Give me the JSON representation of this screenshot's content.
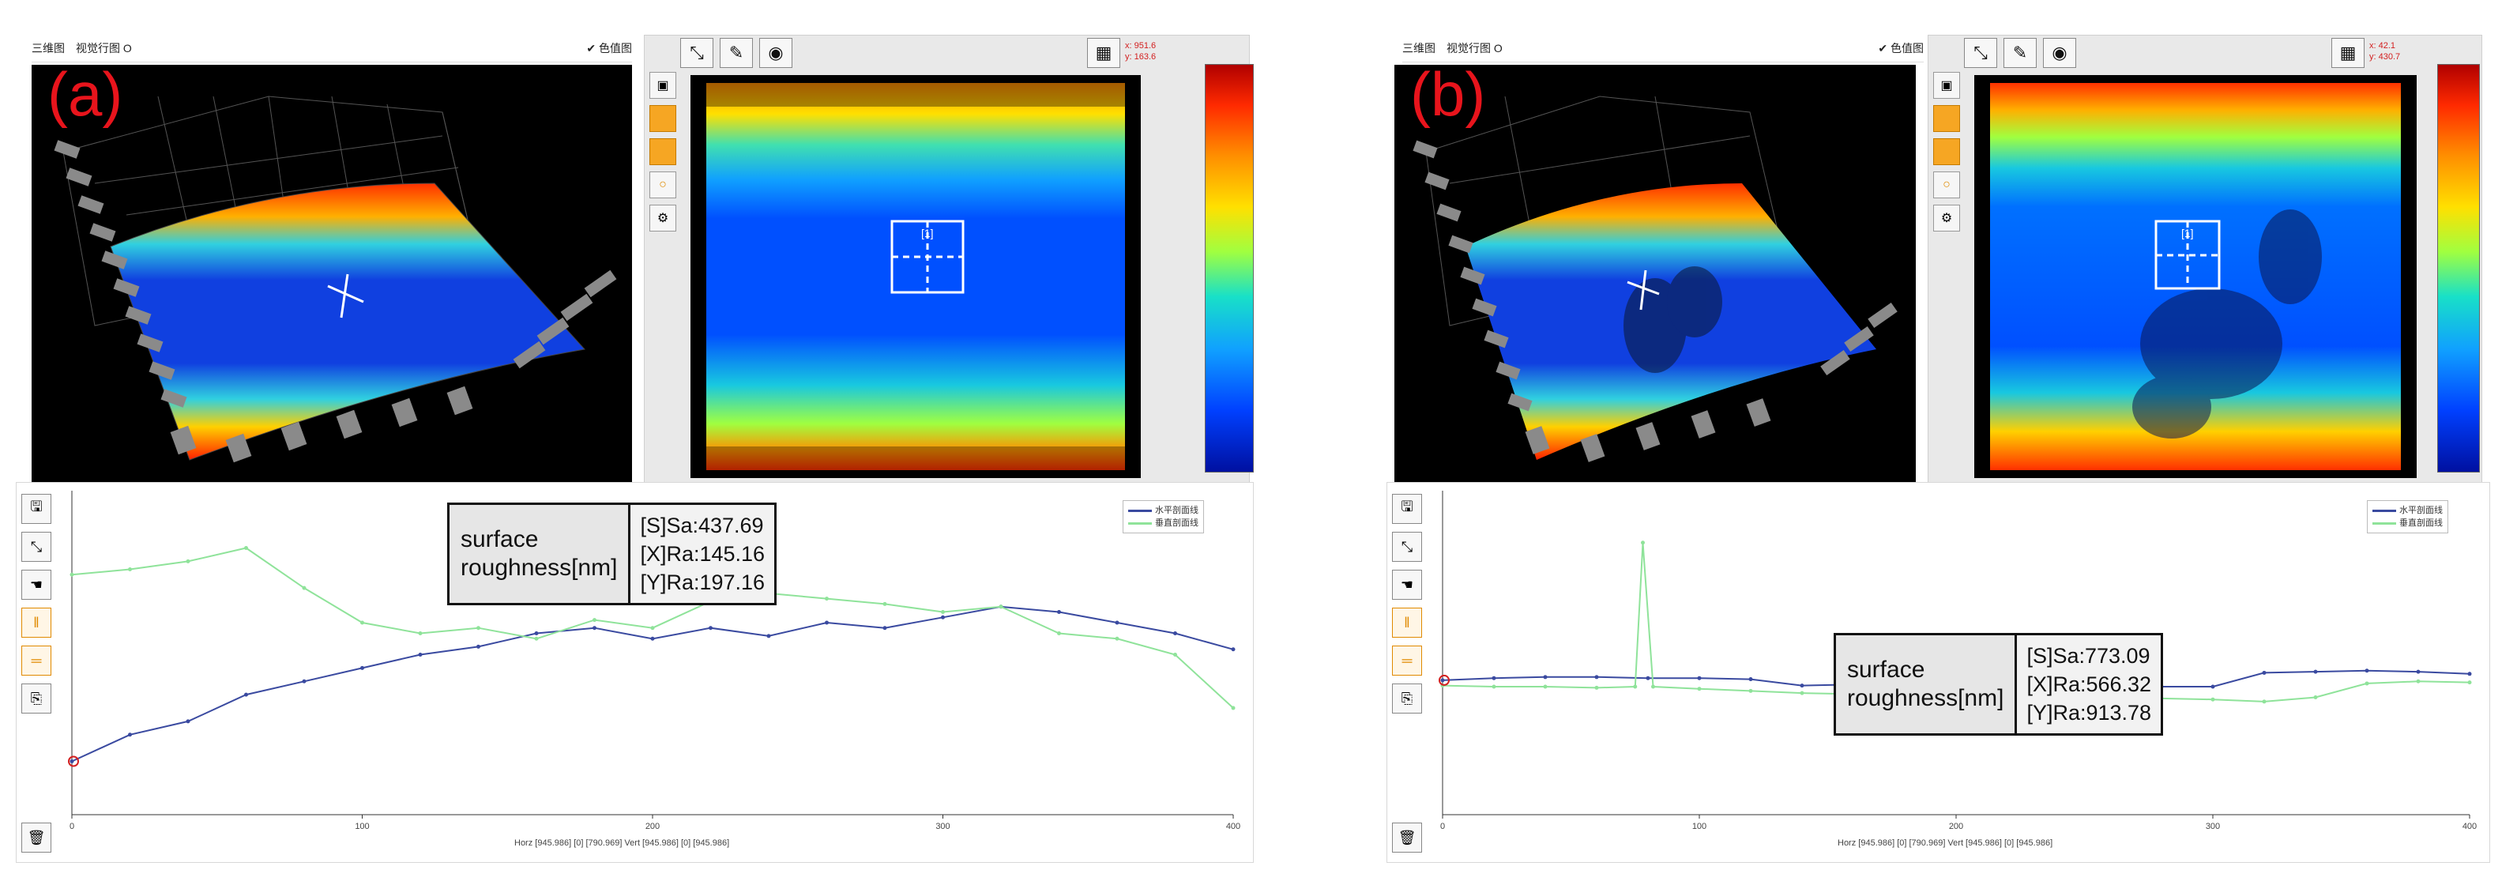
{
  "panels": [
    {
      "letter": "(a)",
      "toolbar": {
        "view_label": "三维图",
        "option_label": "视觉行图 O",
        "checkbox_label": "✔ 色值图"
      },
      "coords": {
        "line1": "x: 951.6",
        "line2": "y: 163.6"
      },
      "marker_label": "[1]",
      "roughness": {
        "label_line1": "surface",
        "label_line2": "roughness[nm]",
        "sa": "[S]Sa:437.69",
        "xra": "[X]Ra:145.16",
        "yra": "[Y]Ra:197.16"
      },
      "legend": [
        "水平剖面线",
        "垂直剖面线"
      ],
      "x_caption": "Horz [945.986] [0] [790.969]   Vert [945.986] [0] [945.986]"
    },
    {
      "letter": "(b)",
      "toolbar": {
        "view_label": "三维图",
        "option_label": "视觉行图 O",
        "checkbox_label": "✔ 色值图"
      },
      "coords": {
        "line1": "x: 42.1",
        "line2": "y: 430.7"
      },
      "marker_label": "[1]",
      "roughness": {
        "label_line1": "surface",
        "label_line2": "roughness[nm]",
        "sa": "[S]Sa:773.09",
        "xra": "[X]Ra:566.32",
        "yra": "[Y]Ra:913.78"
      },
      "legend": [
        "水平剖面线",
        "垂直剖面线"
      ],
      "x_caption": "Horz [945.986] [0] [790.969]   Vert [945.986] [0] [945.986]"
    }
  ],
  "icons": {
    "fit": "fit-view-icon",
    "draw": "draw-pen-icon",
    "target": "target-icon",
    "trash": "trash-icon",
    "calc": "calculator-icon",
    "save": "save-icon",
    "hand": "hand-pan-icon"
  },
  "chart_data": [
    {
      "type": "line",
      "series": [
        {
          "name": "水平剖面线",
          "color": "#3a4aa0",
          "x": [
            0,
            20,
            40,
            60,
            80,
            100,
            120,
            140,
            160,
            180,
            200,
            220,
            240,
            260,
            280,
            300,
            320,
            340,
            360,
            380,
            400
          ],
          "values": [
            8,
            9,
            9.5,
            10.5,
            11,
            11.5,
            12,
            12.3,
            12.8,
            13,
            12.6,
            13,
            12.7,
            13.2,
            13,
            13.4,
            13.8,
            13.6,
            13.2,
            12.8,
            12.2
          ]
        },
        {
          "name": "垂直剖面线",
          "color": "#8fe39a",
          "x": [
            0,
            20,
            40,
            60,
            80,
            100,
            120,
            140,
            160,
            180,
            200,
            220,
            240,
            260,
            280,
            300,
            320,
            340,
            360,
            380,
            400
          ],
          "values": [
            15,
            15.2,
            15.5,
            16,
            14.5,
            13.2,
            12.8,
            13,
            12.6,
            13.3,
            13,
            14,
            14.3,
            14.1,
            13.9,
            13.6,
            13.8,
            12.8,
            12.6,
            12,
            10
          ]
        }
      ],
      "xlim": [
        0,
        400
      ],
      "x_ticks": [
        "0",
        "100",
        "200",
        "300",
        "400"
      ],
      "ylim": [
        6,
        18
      ]
    },
    {
      "type": "line",
      "series": [
        {
          "name": "水平剖面线",
          "color": "#3a4aa0",
          "x": [
            0,
            20,
            40,
            60,
            80,
            100,
            120,
            140,
            160,
            180,
            200,
            220,
            240,
            260,
            280,
            300,
            320,
            340,
            360,
            380,
            400
          ],
          "values": [
            12.6,
            12.8,
            12.9,
            12.9,
            12.8,
            12.8,
            12.7,
            12.1,
            12.2,
            12.1,
            12.0,
            12.0,
            12.2,
            12.1,
            12.0,
            12.0,
            13.3,
            13.4,
            13.5,
            13.4,
            13.2
          ]
        },
        {
          "name": "垂直剖面线",
          "color": "#8fe39a",
          "x": [
            0,
            20,
            40,
            60,
            75,
            78,
            82,
            100,
            120,
            140,
            160,
            180,
            200,
            220,
            240,
            260,
            280,
            300,
            320,
            340,
            360,
            380,
            400
          ],
          "values": [
            12.1,
            12.0,
            12.0,
            11.9,
            12.0,
            25.5,
            12.0,
            11.8,
            11.6,
            11.4,
            11.3,
            11.2,
            11.2,
            11.1,
            11.0,
            11.0,
            10.9,
            10.8,
            10.6,
            11.0,
            12.3,
            12.5,
            12.4
          ]
        }
      ],
      "xlim": [
        0,
        400
      ],
      "x_ticks": [
        "0",
        "100",
        "200",
        "300",
        "400"
      ],
      "ylim": [
        0,
        30
      ]
    }
  ]
}
